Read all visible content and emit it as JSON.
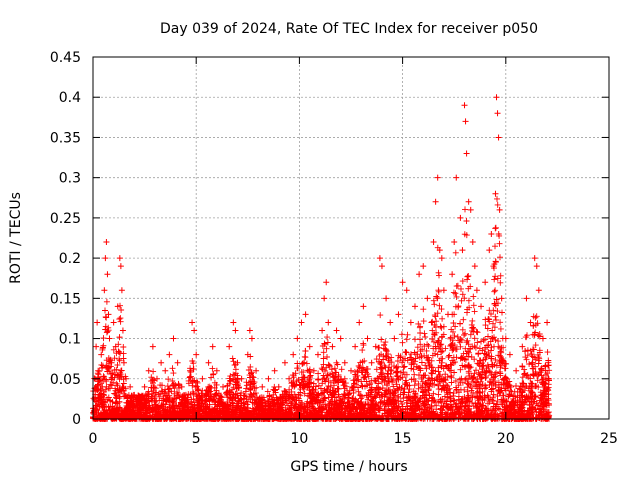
{
  "chart_data": {
    "type": "scatter",
    "title": "Day 039 of 2024, Rate Of TEC Index for receiver p050",
    "xlabel": "GPS time / hours",
    "ylabel": "ROTI / TECUs",
    "xlim": [
      0,
      25
    ],
    "ylim": [
      0,
      0.45
    ],
    "xticks": [
      0,
      5,
      10,
      15,
      20,
      25
    ],
    "yticks": [
      0,
      0.05,
      0.1,
      0.15,
      0.2,
      0.25,
      0.3,
      0.35,
      0.4,
      0.45
    ],
    "xtick_labels": [
      "0",
      "5",
      "10",
      "15",
      "20",
      "25"
    ],
    "ytick_labels": [
      "0",
      "0.05",
      "0.1",
      "0.15",
      "0.2",
      "0.25",
      "0.3",
      "0.35",
      "0.4",
      "0.45"
    ],
    "grid": true,
    "marker": "+",
    "color": "#ff0000",
    "series": [
      {
        "name": "ROTI",
        "x_range": [
          0,
          22.1
        ],
        "points": [
          [
            0.05,
            0.01
          ],
          [
            0.1,
            0.05
          ],
          [
            0.15,
            0.09
          ],
          [
            0.2,
            0.12
          ],
          [
            0.25,
            0.06
          ],
          [
            0.3,
            0.03
          ],
          [
            0.4,
            0.08
          ],
          [
            0.45,
            0.04
          ],
          [
            0.55,
            0.16
          ],
          [
            0.6,
            0.2
          ],
          [
            0.65,
            0.22
          ],
          [
            0.7,
            0.18
          ],
          [
            0.75,
            0.13
          ],
          [
            0.8,
            0.1
          ],
          [
            0.9,
            0.07
          ],
          [
            1.0,
            0.12
          ],
          [
            1.1,
            0.09
          ],
          [
            1.2,
            0.14
          ],
          [
            1.3,
            0.2
          ],
          [
            1.35,
            0.19
          ],
          [
            1.4,
            0.16
          ],
          [
            1.45,
            0.11
          ],
          [
            1.5,
            0.07
          ],
          [
            1.6,
            0.05
          ],
          [
            1.8,
            0.04
          ],
          [
            2.0,
            0.03
          ],
          [
            2.2,
            0.02
          ],
          [
            2.5,
            0.04
          ],
          [
            2.7,
            0.06
          ],
          [
            2.9,
            0.09
          ],
          [
            3.1,
            0.05
          ],
          [
            3.3,
            0.07
          ],
          [
            3.5,
            0.06
          ],
          [
            3.7,
            0.08
          ],
          [
            3.9,
            0.1
          ],
          [
            4.1,
            0.07
          ],
          [
            4.3,
            0.04
          ],
          [
            4.5,
            0.03
          ],
          [
            4.7,
            0.06
          ],
          [
            4.8,
            0.12
          ],
          [
            4.9,
            0.11
          ],
          [
            5.0,
            0.08
          ],
          [
            5.3,
            0.05
          ],
          [
            5.6,
            0.07
          ],
          [
            5.8,
            0.09
          ],
          [
            6.0,
            0.06
          ],
          [
            6.3,
            0.04
          ],
          [
            6.6,
            0.09
          ],
          [
            6.8,
            0.12
          ],
          [
            6.9,
            0.11
          ],
          [
            7.0,
            0.07
          ],
          [
            7.2,
            0.05
          ],
          [
            7.5,
            0.08
          ],
          [
            7.6,
            0.11
          ],
          [
            7.7,
            0.1
          ],
          [
            7.9,
            0.06
          ],
          [
            8.2,
            0.04
          ],
          [
            8.5,
            0.05
          ],
          [
            8.8,
            0.06
          ],
          [
            9.0,
            0.04
          ],
          [
            9.3,
            0.07
          ],
          [
            9.5,
            0.05
          ],
          [
            9.7,
            0.08
          ],
          [
            9.9,
            0.1
          ],
          [
            10.1,
            0.12
          ],
          [
            10.3,
            0.13
          ],
          [
            10.5,
            0.09
          ],
          [
            10.7,
            0.06
          ],
          [
            10.9,
            0.08
          ],
          [
            11.1,
            0.11
          ],
          [
            11.2,
            0.15
          ],
          [
            11.3,
            0.17
          ],
          [
            11.4,
            0.12
          ],
          [
            11.6,
            0.09
          ],
          [
            11.8,
            0.11
          ],
          [
            12.0,
            0.1
          ],
          [
            12.2,
            0.07
          ],
          [
            12.5,
            0.06
          ],
          [
            12.7,
            0.09
          ],
          [
            12.9,
            0.12
          ],
          [
            13.1,
            0.14
          ],
          [
            13.3,
            0.1
          ],
          [
            13.5,
            0.07
          ],
          [
            13.7,
            0.09
          ],
          [
            13.9,
            0.2
          ],
          [
            14.0,
            0.19
          ],
          [
            14.2,
            0.15
          ],
          [
            14.4,
            0.12
          ],
          [
            14.6,
            0.1
          ],
          [
            14.8,
            0.13
          ],
          [
            15.0,
            0.17
          ],
          [
            15.2,
            0.16
          ],
          [
            15.4,
            0.12
          ],
          [
            15.6,
            0.14
          ],
          [
            15.8,
            0.18
          ],
          [
            16.0,
            0.19
          ],
          [
            16.2,
            0.15
          ],
          [
            16.4,
            0.12
          ],
          [
            16.5,
            0.22
          ],
          [
            16.6,
            0.27
          ],
          [
            16.7,
            0.3
          ],
          [
            16.8,
            0.21
          ],
          [
            16.9,
            0.2
          ],
          [
            17.0,
            0.16
          ],
          [
            17.2,
            0.13
          ],
          [
            17.4,
            0.18
          ],
          [
            17.5,
            0.22
          ],
          [
            17.6,
            0.3
          ],
          [
            17.8,
            0.25
          ],
          [
            17.9,
            0.21
          ],
          [
            18.0,
            0.39
          ],
          [
            18.05,
            0.37
          ],
          [
            18.1,
            0.33
          ],
          [
            18.2,
            0.27
          ],
          [
            18.3,
            0.26
          ],
          [
            18.4,
            0.22
          ],
          [
            18.5,
            0.19
          ],
          [
            18.6,
            0.16
          ],
          [
            18.8,
            0.14
          ],
          [
            19.0,
            0.17
          ],
          [
            19.2,
            0.21
          ],
          [
            19.3,
            0.23
          ],
          [
            19.4,
            0.19
          ],
          [
            19.5,
            0.28
          ],
          [
            19.55,
            0.4
          ],
          [
            19.6,
            0.38
          ],
          [
            19.65,
            0.35
          ],
          [
            19.7,
            0.26
          ],
          [
            19.8,
            0.15
          ],
          [
            20.0,
            0.1
          ],
          [
            20.2,
            0.08
          ],
          [
            20.5,
            0.06
          ],
          [
            20.8,
            0.09
          ],
          [
            21.0,
            0.15
          ],
          [
            21.2,
            0.12
          ],
          [
            21.4,
            0.2
          ],
          [
            21.5,
            0.19
          ],
          [
            21.6,
            0.16
          ],
          [
            21.8,
            0.1
          ],
          [
            22.0,
            0.12
          ],
          [
            22.05,
            0.05
          ]
        ]
      }
    ]
  }
}
